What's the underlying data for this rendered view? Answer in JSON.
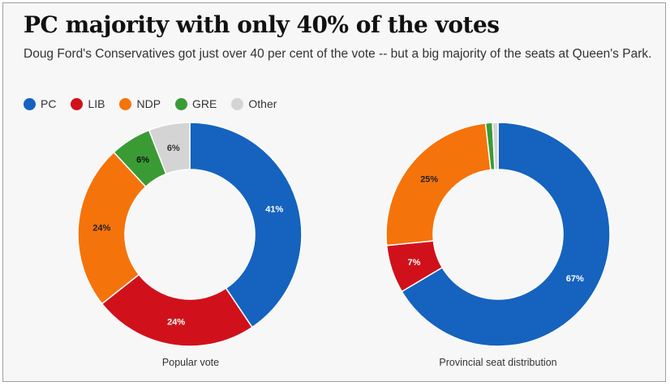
{
  "title": "PC majority with only 40% of the votes",
  "subtitle": "Doug Ford's Conservatives got just over 40 per cent of the vote -- but a big majority of the seats at Queen's Park.",
  "colors": {
    "PC": "#1563be",
    "LIB": "#d0111b",
    "NDP": "#f5730b",
    "GRE": "#3a9b35",
    "Other": "#d4d4d4"
  },
  "legend": [
    "PC",
    "LIB",
    "NDP",
    "GRE",
    "Other"
  ],
  "chart_data": [
    {
      "type": "pie",
      "donut": true,
      "caption": "Popular vote",
      "slices": [
        {
          "name": "PC",
          "value": 41,
          "label": "41%"
        },
        {
          "name": "LIB",
          "value": 24,
          "label": "24%"
        },
        {
          "name": "NDP",
          "value": 24,
          "label": "24%"
        },
        {
          "name": "GRE",
          "value": 6,
          "label": "6%"
        },
        {
          "name": "Other",
          "value": 6,
          "label": "6%"
        }
      ]
    },
    {
      "type": "pie",
      "donut": true,
      "caption": "Provincial seat distribution",
      "slices": [
        {
          "name": "PC",
          "value": 67,
          "label": "67%"
        },
        {
          "name": "LIB",
          "value": 7,
          "label": "7%"
        },
        {
          "name": "NDP",
          "value": 25,
          "label": "25%"
        },
        {
          "name": "GRE",
          "value": 1,
          "label": ""
        },
        {
          "name": "Other",
          "value": 0.8,
          "label": ""
        }
      ]
    }
  ]
}
